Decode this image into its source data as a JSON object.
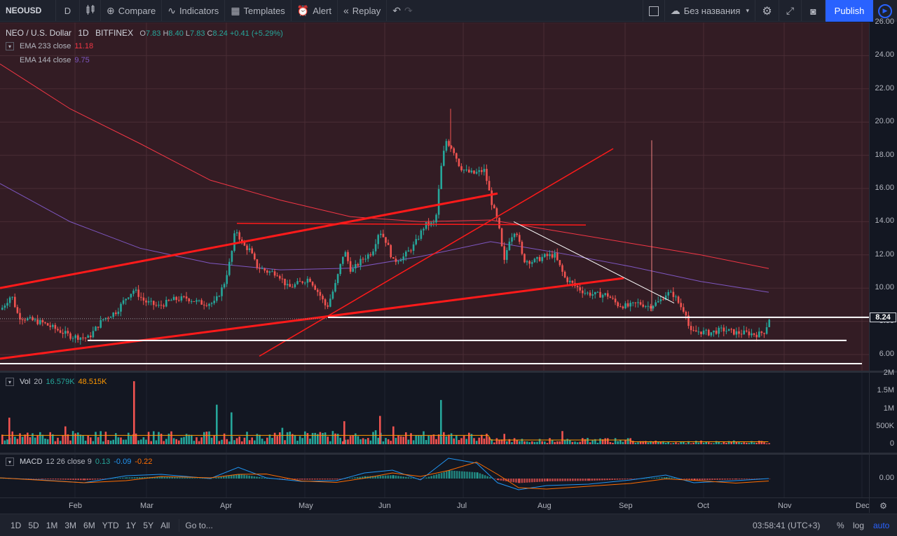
{
  "toolbar": {
    "symbol": "NEOUSD",
    "interval": "D",
    "compare": "Compare",
    "indicators": "Indicators",
    "templates": "Templates",
    "alert": "Alert",
    "replay": "Replay",
    "layout_name": "Без названия",
    "publish": "Publish"
  },
  "legend": {
    "title": "NEO / U.S. Dollar",
    "interval": "1D",
    "exchange": "BITFINEX",
    "o_label": "O",
    "o": "7.83",
    "h_label": "H",
    "h": "8.40",
    "l_label": "L",
    "l": "7.83",
    "c_label": "C",
    "c": "8.24",
    "change": "+0.41 (+5.29%)"
  },
  "indicators": {
    "ema233": {
      "label": "EMA 233 close",
      "value": "11.18",
      "color": "#f23645"
    },
    "ema144": {
      "label": "EMA 144 close",
      "value": "9.75",
      "color": "#7e57c2"
    },
    "vol": {
      "label": "Vol",
      "len": "20",
      "v1": "16.579K",
      "v2": "48.515K"
    },
    "macd": {
      "label": "MACD",
      "params": "12 26 close 9",
      "v1": "0.13",
      "v2": "-0.09",
      "v3": "-0.22"
    }
  },
  "price_axis": [
    "26.00",
    "24.00",
    "22.00",
    "20.00",
    "18.00",
    "16.00",
    "14.00",
    "12.00",
    "10.00",
    "8.00",
    "6.00"
  ],
  "last_price": "8.24",
  "vol_axis": [
    "2M",
    "1.5M",
    "1M",
    "500K",
    "0"
  ],
  "macd_axis": [
    "0.00"
  ],
  "time_axis": [
    "Feb",
    "Mar",
    "Apr",
    "May",
    "Jun",
    "Jul",
    "Aug",
    "Sep",
    "Oct",
    "Nov",
    "Dec"
  ],
  "bottom": {
    "ranges": [
      "1D",
      "5D",
      "1M",
      "3M",
      "6M",
      "YTD",
      "1Y",
      "5Y",
      "All"
    ],
    "goto": "Go to...",
    "time": "03:58:41 (UTC+3)",
    "pct": "%",
    "log": "log",
    "auto": "auto"
  },
  "colors": {
    "up": "#26a69a",
    "down": "#ef5350",
    "accent": "#2962ff",
    "ema233": "#f23645",
    "ema144": "#7e57c2",
    "macd": "#2196f3",
    "signal": "#ff6d00"
  },
  "chart_data": {
    "type": "candlestick",
    "title": "NEO / U.S. Dollar",
    "ylim": [
      5.3,
      26.0
    ],
    "x_months": [
      "Feb",
      "Mar",
      "Apr",
      "May",
      "Jun",
      "Jul",
      "Aug",
      "Sep",
      "Oct",
      "Nov",
      "Dec"
    ],
    "approx_close_by_month": {
      "Jan": 8.5,
      "Feb": 7.2,
      "Mar": 9.2,
      "Apr": 12.5,
      "May": 9.5,
      "Jun": 12.5,
      "Jul": 16.5,
      "Aug": 11.5,
      "Sep": 9.0,
      "Oct": 7.3,
      "Oct_end": 8.24
    },
    "key_levels": [
      8.24,
      6.85,
      5.45
    ],
    "grid": true
  }
}
